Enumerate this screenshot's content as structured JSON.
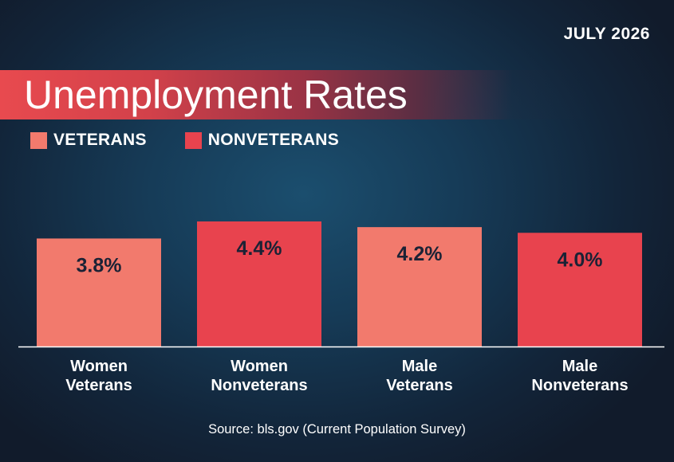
{
  "date_label": "JULY 2026",
  "title": "Unemployment Rates",
  "legend": [
    {
      "label": "VETERANS",
      "color": "#f27a6d"
    },
    {
      "label": "NONVETERANS",
      "color": "#e8434e"
    }
  ],
  "source": "Source: bls.gov (Current Population Survey)",
  "chart_data": {
    "type": "bar",
    "categories": [
      [
        "Women",
        "Veterans"
      ],
      [
        "Women",
        "Nonveterans"
      ],
      [
        "Male",
        "Veterans"
      ],
      [
        "Male",
        "Nonveterans"
      ]
    ],
    "values": [
      3.8,
      4.4,
      4.2,
      4.0
    ],
    "value_labels": [
      "3.8%",
      "4.4%",
      "4.2%",
      "4.0%"
    ],
    "series_index": [
      0,
      1,
      0,
      1
    ],
    "ylim": [
      0,
      4.4
    ],
    "grid": false,
    "legend_position": "top-left",
    "label_color": "#1b2235"
  }
}
